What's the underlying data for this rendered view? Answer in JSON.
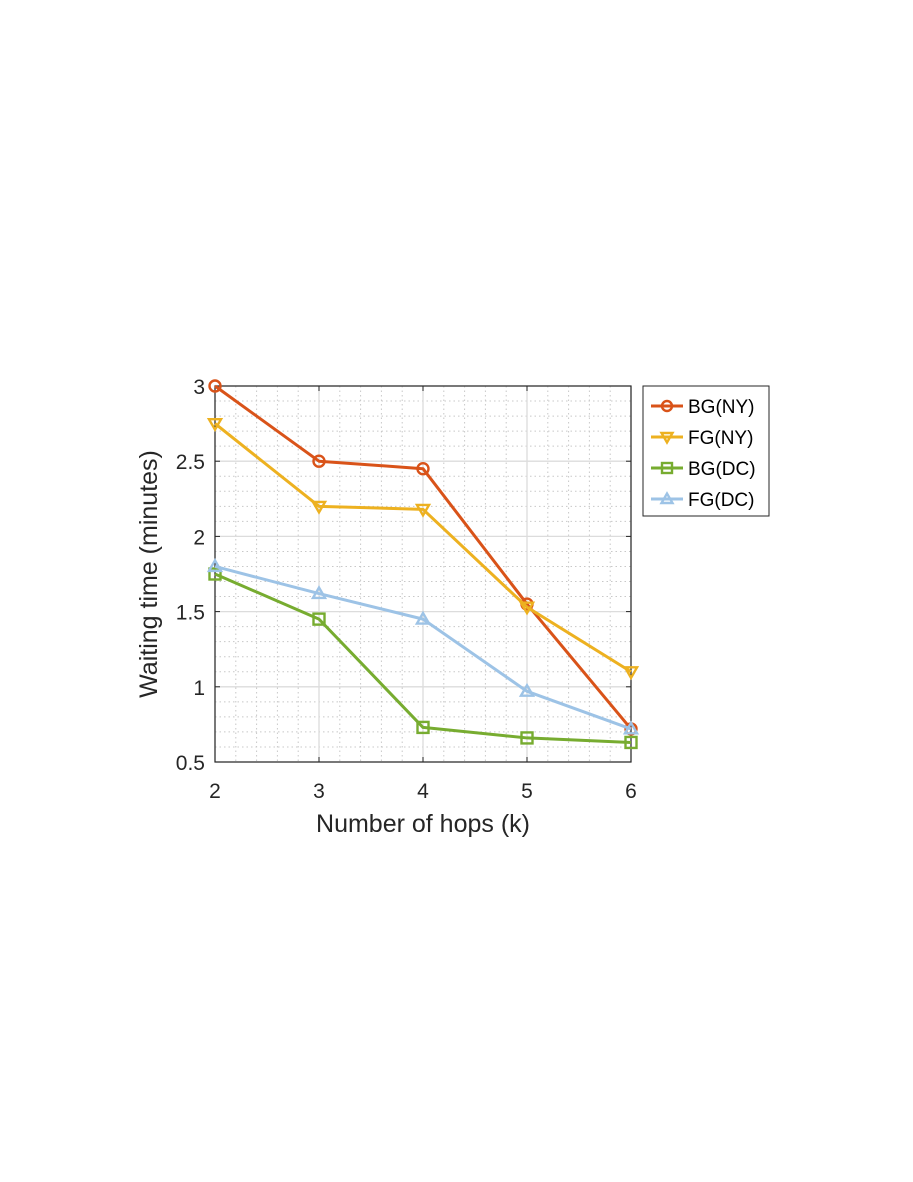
{
  "chart_data": {
    "type": "line",
    "title": "",
    "xlabel": "Number of hops (k)",
    "ylabel": "Waiting time (minutes)",
    "x": [
      2,
      3,
      4,
      5,
      6
    ],
    "xlim": [
      2,
      6
    ],
    "ylim": [
      0.5,
      3
    ],
    "xticks": [
      "2",
      "3",
      "4",
      "5",
      "6"
    ],
    "yticks": [
      "0.5",
      "1",
      "1.5",
      "2",
      "2.5",
      "3"
    ],
    "grid": true,
    "minor_grid": true,
    "legend_position": "outside-right-top",
    "series": [
      {
        "name": "BG(NY)",
        "color": "#D95319",
        "marker": "circle",
        "values": [
          3.0,
          2.5,
          2.45,
          1.55,
          0.72
        ]
      },
      {
        "name": "FG(NY)",
        "color": "#EDB120",
        "marker": "triangle-down",
        "values": [
          2.75,
          2.2,
          2.18,
          1.53,
          1.1
        ]
      },
      {
        "name": "BG(DC)",
        "color": "#77AC30",
        "marker": "square",
        "values": [
          1.75,
          1.45,
          0.73,
          0.66,
          0.63
        ]
      },
      {
        "name": "FG(DC)",
        "color": "#9DC3E6",
        "marker": "triangle-up",
        "values": [
          1.8,
          1.62,
          1.45,
          0.97,
          0.72
        ]
      }
    ]
  }
}
